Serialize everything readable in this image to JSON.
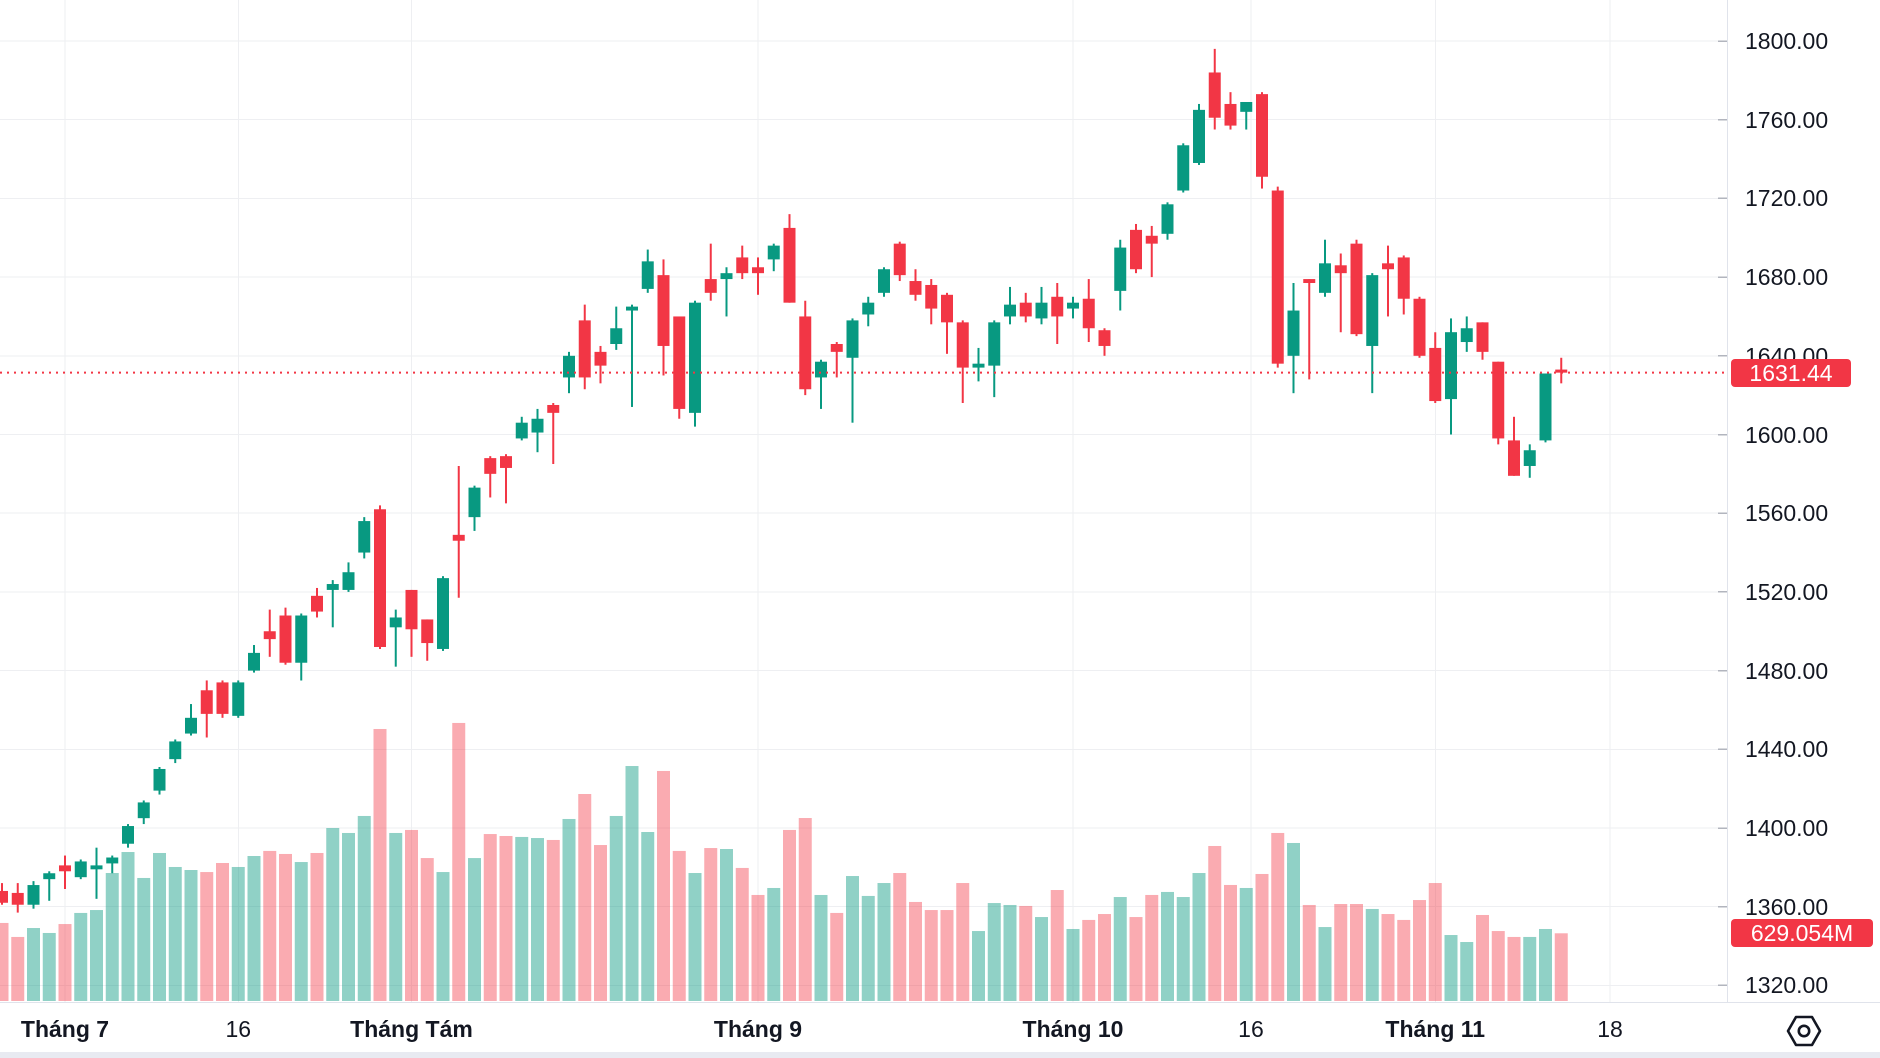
{
  "widget": {
    "price_label": "1631.44",
    "volume_label": "629.054M"
  },
  "chart_data": {
    "type": "candlestick",
    "subtype": "price-with-volume-overlay",
    "title": "",
    "xlabel": "",
    "ylabel": "",
    "legend": "none",
    "grid": true,
    "price_axis": {
      "side": "right",
      "min": 1320,
      "max": 1800,
      "tick_step": 40,
      "tick_labels": [
        "1800.00",
        "1760.00",
        "1720.00",
        "1680.00",
        "1640.00",
        "1600.00",
        "1560.00",
        "1520.00",
        "1480.00",
        "1440.00",
        "1400.00",
        "1360.00",
        "1320.00"
      ]
    },
    "time_axis": {
      "ticks": [
        {
          "i": 4,
          "label": "Tháng 7",
          "bold": true
        },
        {
          "i": 15,
          "label": "16",
          "bold": false
        },
        {
          "i": 26,
          "label": "Tháng Tám",
          "bold": true
        },
        {
          "i": 48,
          "label": "Tháng 9",
          "bold": true
        },
        {
          "i": 68,
          "label": "Tháng 10",
          "bold": true
        },
        {
          "i": 79.3,
          "label": "16",
          "bold": false
        },
        {
          "i": 91,
          "label": "Tháng 11",
          "bold": true
        },
        {
          "i": 102.1,
          "label": "18",
          "bold": false
        }
      ]
    },
    "last_price": 1631.44,
    "last_volume_millions": 629.054,
    "colors": {
      "up": "#089981",
      "down": "#F23645",
      "volume_up": "rgba(8,153,129,0.45)",
      "volume_down": "rgba(242,54,69,0.42)",
      "grid": "#EEEFF2",
      "axis_border": "#E0E3EB",
      "axis_text": "#131722",
      "price_line": "#F23645",
      "label_bg": "#F23645",
      "label_text": "#ffffff"
    },
    "candles_format": [
      "open",
      "high",
      "low",
      "close",
      "volume_millions"
    ],
    "candles": [
      [
        1368,
        1372,
        1361,
        1362,
        725
      ],
      [
        1367,
        1372,
        1357,
        1361,
        595
      ],
      [
        1361,
        1373,
        1359,
        1371,
        678
      ],
      [
        1374,
        1378,
        1363,
        1377,
        632
      ],
      [
        1381,
        1386,
        1369,
        1378,
        715
      ],
      [
        1375,
        1384,
        1374,
        1383,
        818
      ],
      [
        1379,
        1390,
        1364,
        1381,
        845
      ],
      [
        1382,
        1386,
        1377,
        1385,
        1189
      ],
      [
        1392,
        1402,
        1390,
        1401,
        1384
      ],
      [
        1405,
        1414,
        1402,
        1413,
        1143
      ],
      [
        1419,
        1431,
        1417,
        1430,
        1375
      ],
      [
        1435,
        1445,
        1433,
        1444,
        1245
      ],
      [
        1448,
        1463,
        1447,
        1456,
        1217
      ],
      [
        1470,
        1475,
        1446,
        1458,
        1198
      ],
      [
        1474,
        1475,
        1456,
        1458,
        1282
      ],
      [
        1457,
        1475,
        1456,
        1474,
        1245
      ],
      [
        1480,
        1493,
        1479,
        1489,
        1347
      ],
      [
        1500,
        1511,
        1487,
        1496,
        1394
      ],
      [
        1508,
        1512,
        1483,
        1484,
        1366
      ],
      [
        1484,
        1509,
        1475,
        1508,
        1291
      ],
      [
        1518,
        1522,
        1507,
        1510,
        1375
      ],
      [
        1521,
        1526,
        1502,
        1524,
        1607
      ],
      [
        1521,
        1535,
        1520,
        1530,
        1561
      ],
      [
        1540,
        1558,
        1537,
        1556,
        1719
      ],
      [
        1562,
        1564,
        1491,
        1492,
        2527
      ],
      [
        1502,
        1511,
        1482,
        1507,
        1561
      ],
      [
        1521,
        1521,
        1487,
        1501,
        1589
      ],
      [
        1506,
        1506,
        1485,
        1494,
        1328
      ],
      [
        1491,
        1528,
        1490,
        1527,
        1198
      ],
      [
        1549,
        1584,
        1517,
        1546,
        2583
      ],
      [
        1558,
        1574,
        1551,
        1573,
        1328
      ],
      [
        1588,
        1589,
        1568,
        1580,
        1551
      ],
      [
        1589,
        1590,
        1565,
        1583,
        1533
      ],
      [
        1598,
        1609,
        1597,
        1606,
        1524
      ],
      [
        1601,
        1613,
        1591,
        1608,
        1514
      ],
      [
        1615,
        1616,
        1585,
        1611,
        1496
      ],
      [
        1629,
        1642,
        1621,
        1640,
        1691
      ],
      [
        1658,
        1666,
        1623,
        1629,
        1923
      ],
      [
        1642,
        1645,
        1626,
        1635,
        1449
      ],
      [
        1646,
        1665,
        1643,
        1654,
        1719
      ],
      [
        1663,
        1666,
        1614,
        1665,
        2183
      ],
      [
        1674,
        1694,
        1672,
        1688,
        1570
      ],
      [
        1681,
        1689,
        1630,
        1645,
        2137
      ],
      [
        1660,
        1660,
        1608,
        1613,
        1394
      ],
      [
        1611,
        1668,
        1604,
        1667,
        1189
      ],
      [
        1679,
        1697,
        1668,
        1672,
        1421
      ],
      [
        1679,
        1685,
        1660,
        1682,
        1412
      ],
      [
        1690,
        1696,
        1679,
        1682,
        1236
      ],
      [
        1685,
        1690,
        1671,
        1682,
        985
      ],
      [
        1689,
        1697,
        1683,
        1696,
        1050
      ],
      [
        1705,
        1712,
        1667,
        1667,
        1589
      ],
      [
        1660,
        1668,
        1620,
        1623,
        1700
      ],
      [
        1629,
        1638,
        1613,
        1637,
        985
      ],
      [
        1646,
        1647,
        1629,
        1642,
        818
      ],
      [
        1639,
        1659,
        1606,
        1658,
        1161
      ],
      [
        1661,
        1670,
        1655,
        1667,
        976
      ],
      [
        1672,
        1685,
        1670,
        1684,
        1096
      ],
      [
        1697,
        1698,
        1678,
        1681,
        1189
      ],
      [
        1678,
        1684,
        1668,
        1671,
        920
      ],
      [
        1676,
        1679,
        1656,
        1664,
        845
      ],
      [
        1671,
        1672,
        1641,
        1657,
        845
      ],
      [
        1657,
        1658,
        1616,
        1634,
        1096
      ],
      [
        1634,
        1644,
        1627,
        1636,
        650
      ],
      [
        1635,
        1658,
        1619,
        1657,
        910
      ],
      [
        1660,
        1675,
        1656,
        1666,
        892
      ],
      [
        1667,
        1672,
        1657,
        1660,
        883
      ],
      [
        1659,
        1675,
        1656,
        1667,
        780
      ],
      [
        1670,
        1677,
        1646,
        1660,
        1031
      ],
      [
        1664,
        1670,
        1659,
        1667,
        669
      ],
      [
        1669,
        1679,
        1647,
        1654,
        753
      ],
      [
        1653,
        1654,
        1640,
        1645,
        808
      ],
      [
        1673,
        1699,
        1663,
        1695,
        966
      ],
      [
        1704,
        1707,
        1682,
        1684,
        780
      ],
      [
        1701,
        1706,
        1680,
        1697,
        985
      ],
      [
        1702,
        1718,
        1699,
        1717,
        1013
      ],
      [
        1724,
        1748,
        1723,
        1747,
        966
      ],
      [
        1738,
        1768,
        1737,
        1765,
        1189
      ],
      [
        1784,
        1796,
        1755,
        1761,
        1440
      ],
      [
        1768,
        1774,
        1755,
        1757,
        1078
      ],
      [
        1764,
        1769,
        1755,
        1769,
        1050
      ],
      [
        1773,
        1774,
        1725,
        1731,
        1180
      ],
      [
        1724,
        1726,
        1634,
        1636,
        1561
      ],
      [
        1640,
        1677,
        1621,
        1663,
        1468
      ],
      [
        1679,
        1679,
        1628,
        1677,
        892
      ],
      [
        1672,
        1699,
        1670,
        1687,
        687
      ],
      [
        1686,
        1692,
        1652,
        1682,
        901
      ],
      [
        1697,
        1699,
        1650,
        1651,
        901
      ],
      [
        1645,
        1682,
        1621,
        1681,
        855
      ],
      [
        1687,
        1696,
        1660,
        1684,
        808
      ],
      [
        1690,
        1691,
        1661,
        1669,
        753
      ],
      [
        1669,
        1670,
        1639,
        1640,
        938
      ],
      [
        1644,
        1652,
        1616,
        1617,
        1096
      ],
      [
        1618,
        1659,
        1600,
        1652,
        613
      ],
      [
        1647,
        1660,
        1642,
        1654,
        548
      ],
      [
        1657,
        1657,
        1638,
        1642,
        799
      ],
      [
        1637,
        1637,
        1595,
        1598,
        650
      ],
      [
        1597,
        1609,
        1579,
        1579,
        595
      ],
      [
        1584,
        1595,
        1578,
        1592,
        595
      ],
      [
        1597,
        1631,
        1596,
        1631,
        669
      ],
      [
        1633,
        1639,
        1626,
        1631.44,
        629.054
      ]
    ]
  }
}
